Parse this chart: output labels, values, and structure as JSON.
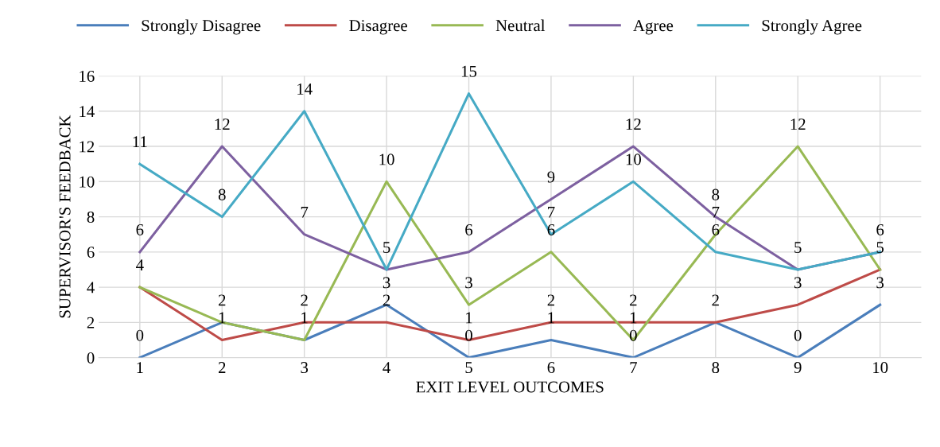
{
  "chart_data": {
    "type": "line",
    "xlabel": "EXIT LEVEL OUTCOMES",
    "ylabel": "SUPERVISOR'S FEEDBACK",
    "categories": [
      "1",
      "2",
      "3",
      "4",
      "5",
      "6",
      "7",
      "8",
      "9",
      "10"
    ],
    "series": [
      {
        "name": "Strongly Disagree",
        "color": "#4a7ebb",
        "values": [
          0,
          2,
          1,
          3,
          0,
          1,
          0,
          2,
          0,
          3
        ],
        "value_labels": [
          "0",
          "2",
          "1",
          "3",
          "0",
          "1",
          "0",
          "2",
          "0",
          "3"
        ]
      },
      {
        "name": "Disagree",
        "color": "#be4b48",
        "values": [
          4,
          1,
          2,
          2,
          1,
          2,
          2,
          2,
          3,
          5
        ],
        "value_labels": [
          "4",
          "1",
          "2",
          "2",
          "1",
          "2",
          "2",
          null,
          "3",
          "5"
        ]
      },
      {
        "name": "Neutral",
        "color": "#98b954",
        "values": [
          4,
          2,
          1,
          10,
          3,
          6,
          1,
          7,
          12,
          5
        ],
        "value_labels": [
          null,
          null,
          null,
          "10",
          "3",
          "6",
          "1",
          "7",
          "12",
          null
        ]
      },
      {
        "name": "Agree",
        "color": "#7d60a0",
        "values": [
          6,
          12,
          7,
          5,
          6,
          9,
          12,
          8,
          5,
          6
        ],
        "value_labels": [
          "6",
          "12",
          "7",
          "5",
          "6",
          "9",
          "12",
          "8",
          "5",
          "6"
        ]
      },
      {
        "name": "Strongly Agree",
        "color": "#46aac5",
        "values": [
          11,
          8,
          14,
          5,
          15,
          7,
          10,
          6,
          5,
          6
        ],
        "value_labels": [
          "11",
          "8",
          "14",
          null,
          "15",
          "7",
          "10",
          "6",
          null,
          null
        ]
      }
    ],
    "ylim": [
      0,
      16
    ],
    "yticks": [
      0,
      2,
      4,
      6,
      8,
      10,
      12,
      14,
      16
    ],
    "grid": true,
    "legend": "top",
    "marker": "none",
    "line_style": "solid"
  }
}
